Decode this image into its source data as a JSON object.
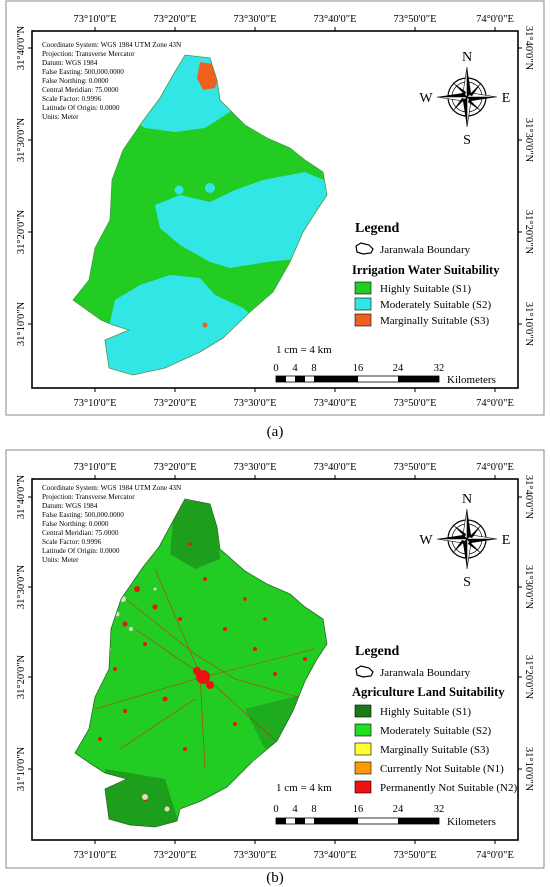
{
  "map_a": {
    "top_ticks": [
      "73°10'0\"E",
      "73°20'0\"E",
      "73°30'0\"E",
      "73°40'0\"E",
      "73°50'0\"E",
      "74°0'0\"E"
    ],
    "bottom_ticks": [
      "73°10'0\"E",
      "73°20'0\"E",
      "73°30'0\"E",
      "73°40'0\"E",
      "73°50'0\"E",
      "74°0'0\"E"
    ],
    "left_ticks": [
      "31°40'0\"N",
      "31°30'0\"N",
      "31°20'0\"N",
      "31°10'0\"N"
    ],
    "right_ticks": [
      "31°40'0\"N",
      "31°30'0\"N",
      "31°20'0\"N",
      "31°10'0\"N"
    ],
    "metadata": [
      "Coordinate System: WGS 1984 UTM Zone 43N",
      "Projection: Transverse Mercator",
      "Datum: WGS 1984",
      "False Easting: 500,000.0000",
      "False Northing: 0.0000",
      "Central Meridian: 75.0000",
      "Scale Factor: 0.9996",
      "Latitude Of Origin: 0.0000",
      "Units: Meter"
    ],
    "compass": {
      "n": "N",
      "s": "S",
      "e": "E",
      "w": "W"
    },
    "legend_title": "Legend",
    "boundary_label": "Jaranwala Boundary",
    "legend_subtitle": "Irrigation Water Suitability",
    "classes": [
      {
        "label": "Highly Suitable (S1)",
        "color": "#22cc22"
      },
      {
        "label": "Moderately Suitable (S2)",
        "color": "#33e6e6"
      },
      {
        "label": "Marginally Suitable (S3)",
        "color": "#f06020"
      }
    ],
    "scale_text": "1 cm = 4 km",
    "scale_ticks": [
      "0",
      "4",
      "8",
      "16",
      "24",
      "32"
    ],
    "scale_unit": "Kilometers",
    "caption": "(a)"
  },
  "map_b": {
    "top_ticks": [
      "73°10'0\"E",
      "73°20'0\"E",
      "73°30'0\"E",
      "73°40'0\"E",
      "73°50'0\"E",
      "74°0'0\"E"
    ],
    "bottom_ticks": [
      "73°10'0\"E",
      "73°20'0\"E",
      "73°30'0\"E",
      "73°40'0\"E",
      "73°50'0\"E",
      "74°0'0\"E"
    ],
    "left_ticks": [
      "31°40'0\"N",
      "31°30'0\"N",
      "31°20'0\"N",
      "31°10'0\"N"
    ],
    "right_ticks": [
      "31°40'0\"N",
      "31°30'0\"N",
      "31°20'0\"N",
      "31°10'0\"N"
    ],
    "metadata": [
      "Coordinate System: WGS 1984 UTM Zone 43N",
      "Projection: Transverse Mercator",
      "Datum: WGS 1984",
      "False Easting: 500,000.0000",
      "False Northing: 0.0000",
      "Central Meridian: 75.0000",
      "Scale Factor: 0.9996",
      "Latitude Of Origin: 0.0000",
      "Units: Meter"
    ],
    "compass": {
      "n": "N",
      "s": "S",
      "e": "E",
      "w": "W"
    },
    "legend_title": "Legend",
    "boundary_label": "Jaranwala Boundary",
    "legend_subtitle": "Agriculture Land Suitability",
    "classes": [
      {
        "label": "Highly Suitable (S1)",
        "color": "#1a7a1a"
      },
      {
        "label": "Moderately Suitable (S2)",
        "color": "#22dd22"
      },
      {
        "label": "Marginally Suitable (S3)",
        "color": "#ffff33"
      },
      {
        "label": "Currently Not Suitable (N1)",
        "color": "#ff9900"
      },
      {
        "label": "Permanently Not Suitable (N2)",
        "color": "#ee1111"
      }
    ],
    "scale_text": "1 cm = 4 km",
    "scale_ticks": [
      "0",
      "4",
      "8",
      "16",
      "24",
      "32"
    ],
    "scale_unit": "Kilometers",
    "caption": "(b)"
  }
}
